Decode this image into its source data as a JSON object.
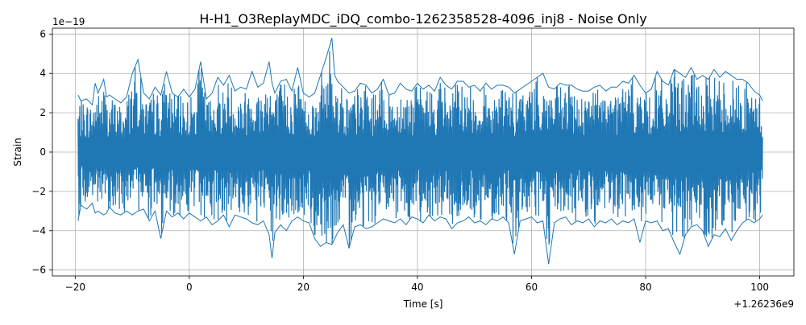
{
  "chart_data": {
    "type": "line",
    "title": "H-H1_O3ReplayMDC_iDQ_combo-1262358528-4096_inj8 - Noise Only",
    "xlabel": "Time [s]",
    "ylabel": "Strain",
    "x_offset_label": "+1.26236e9",
    "y_scale_label": "1e−19",
    "xlim": [
      -24.0,
      106.0
    ],
    "ylim": [
      -6.3,
      6.3
    ],
    "x_ticks": [
      -20,
      0,
      20,
      40,
      60,
      80,
      100
    ],
    "x_tick_labels": [
      "−20",
      "0",
      "20",
      "40",
      "60",
      "80",
      "100"
    ],
    "y_ticks": [
      -6,
      -4,
      -2,
      0,
      2,
      4,
      6
    ],
    "y_tick_labels": [
      "−6",
      "−4",
      "−2",
      "0",
      "2",
      "4",
      "6"
    ],
    "grid": true,
    "line_color": "#1f77b4",
    "series": [
      {
        "x": [
          -19.5,
          -19.0,
          -18.0,
          -17.0,
          -16.5,
          -16.0,
          -15.0,
          -14.5,
          -14.0,
          -13.0,
          -12.0,
          -11.0,
          -10.0,
          -9.0,
          -8.0,
          -7.0,
          -6.0,
          -5.0,
          -4.0,
          -3.0,
          -2.0,
          -1.0,
          0.0,
          1.0,
          2.0,
          3.0,
          4.0,
          5.0,
          6.0,
          7.0,
          8.0,
          9.0,
          10.0,
          11.0,
          12.0,
          13.0,
          14.0,
          14.5,
          15.0,
          16.0,
          17.0,
          18.0,
          19.0,
          20.0,
          21.0,
          22.0,
          23.0,
          24.0,
          25.0,
          25.5,
          26.0,
          27.0,
          28.0,
          29.0,
          30.0,
          31.0,
          32.0,
          33.0,
          34.0,
          35.0,
          36.0,
          37.0,
          38.0,
          39.0,
          40.0,
          41.0,
          42.0,
          43.0,
          44.0,
          45.0,
          46.0,
          47.0,
          48.0,
          49.0,
          50.0,
          51.0,
          52.0,
          53.0,
          54.0,
          55.0,
          56.0,
          57.0,
          58.0,
          59.0,
          60.0,
          61.0,
          62.0,
          63.0,
          64.0,
          65.0,
          66.0,
          67.0,
          68.0,
          69.0,
          70.0,
          71.0,
          72.0,
          73.0,
          74.0,
          75.0,
          76.0,
          77.0,
          78.0,
          79.0,
          80.0,
          81.0,
          82.0,
          83.0,
          84.0,
          85.0,
          86.0,
          87.0,
          88.0,
          89.0,
          90.0,
          91.0,
          92.0,
          93.0,
          94.0,
          95.0,
          96.0,
          97.0,
          98.0,
          99.0,
          100.0,
          100.5
        ],
        "y_max": [
          2.9,
          2.6,
          2.7,
          2.4,
          3.5,
          3.0,
          3.7,
          2.8,
          2.9,
          2.7,
          2.5,
          2.8,
          4.0,
          4.7,
          3.0,
          2.7,
          3.3,
          2.9,
          4.1,
          3.0,
          2.8,
          3.2,
          2.8,
          3.2,
          4.6,
          2.7,
          3.0,
          3.8,
          3.4,
          3.9,
          3.1,
          3.3,
          3.2,
          4.1,
          3.3,
          3.5,
          4.6,
          3.5,
          3.0,
          3.6,
          3.7,
          3.1,
          4.3,
          3.0,
          2.8,
          3.0,
          3.9,
          4.8,
          5.8,
          3.9,
          3.6,
          3.3,
          3.0,
          3.1,
          3.5,
          3.4,
          3.0,
          3.2,
          3.7,
          2.9,
          3.0,
          3.5,
          3.2,
          3.1,
          3.5,
          3.2,
          3.4,
          3.1,
          3.8,
          3.4,
          3.2,
          3.6,
          3.6,
          3.3,
          3.4,
          3.1,
          3.5,
          3.2,
          3.4,
          3.4,
          3.3,
          3.0,
          3.2,
          3.4,
          3.6,
          3.8,
          4.0,
          3.3,
          3.2,
          3.5,
          3.4,
          3.4,
          3.2,
          3.1,
          3.1,
          3.3,
          3.4,
          3.1,
          3.3,
          3.3,
          3.6,
          3.5,
          3.9,
          3.4,
          3.0,
          3.2,
          4.1,
          3.6,
          3.4,
          4.2,
          4.0,
          3.8,
          4.3,
          3.7,
          3.9,
          3.7,
          4.2,
          3.8,
          4.1,
          3.9,
          3.7,
          3.7,
          3.5,
          3.1,
          2.9,
          2.6
        ],
        "y_min": [
          -3.5,
          -2.7,
          -2.9,
          -2.6,
          -3.1,
          -3.0,
          -3.2,
          -3.1,
          -2.8,
          -3.1,
          -3.2,
          -3.0,
          -3.2,
          -3.0,
          -2.9,
          -3.5,
          -3.0,
          -4.4,
          -3.0,
          -3.3,
          -3.1,
          -3.4,
          -3.1,
          -3.3,
          -3.5,
          -3.3,
          -3.7,
          -3.5,
          -3.2,
          -3.8,
          -3.2,
          -3.3,
          -3.4,
          -3.6,
          -3.7,
          -3.5,
          -4.2,
          -5.4,
          -4.1,
          -3.7,
          -4.0,
          -3.5,
          -3.3,
          -3.5,
          -3.6,
          -4.4,
          -4.8,
          -4.6,
          -4.7,
          -4.4,
          -4.1,
          -3.7,
          -4.9,
          -3.8,
          -3.7,
          -3.9,
          -3.8,
          -3.6,
          -3.4,
          -3.5,
          -3.6,
          -3.4,
          -3.7,
          -3.3,
          -3.4,
          -3.6,
          -3.2,
          -3.5,
          -3.3,
          -3.4,
          -3.9,
          -3.6,
          -3.5,
          -3.3,
          -3.6,
          -3.5,
          -3.7,
          -3.4,
          -3.5,
          -3.3,
          -3.6,
          -5.2,
          -3.5,
          -3.4,
          -3.3,
          -3.6,
          -3.5,
          -5.7,
          -3.6,
          -3.4,
          -3.3,
          -3.7,
          -3.5,
          -3.6,
          -3.4,
          -3.8,
          -3.5,
          -3.6,
          -3.4,
          -3.7,
          -3.5,
          -3.6,
          -3.4,
          -4.6,
          -3.5,
          -3.6,
          -3.5,
          -4.0,
          -3.9,
          -4.6,
          -5.2,
          -4.2,
          -3.8,
          -3.7,
          -4.0,
          -4.8,
          -4.2,
          -4.3,
          -3.9,
          -4.5,
          -4.0,
          -3.6,
          -3.4,
          -3.6,
          -3.4,
          -3.2
        ]
      }
    ]
  }
}
